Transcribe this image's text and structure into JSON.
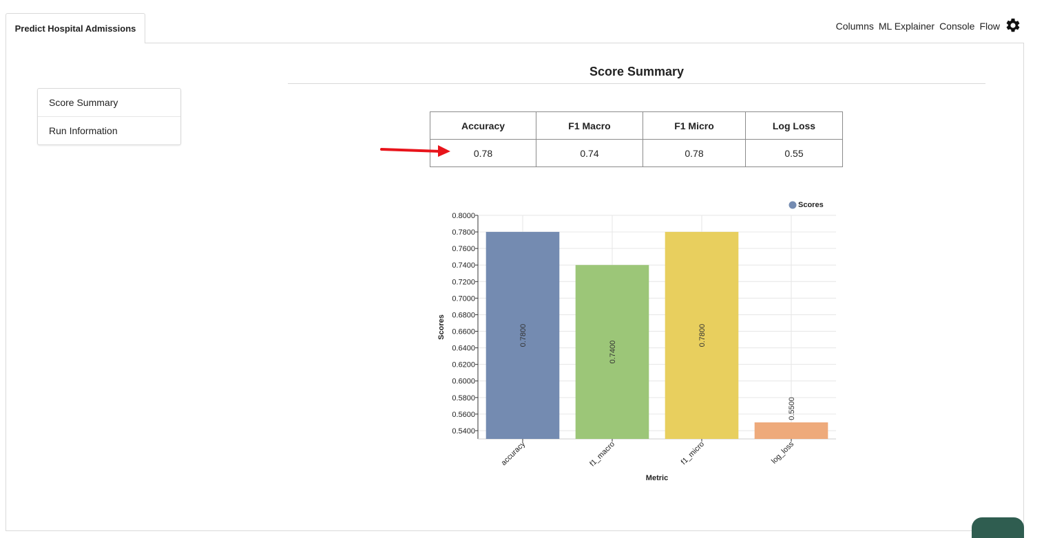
{
  "tab": {
    "label": "Predict Hospital Admissions"
  },
  "topnav": {
    "items": [
      "Columns",
      "ML Explainer",
      "Console",
      "Flow"
    ],
    "settings_icon": "gear-icon"
  },
  "sidenav": {
    "items": [
      "Score Summary",
      "Run Information"
    ]
  },
  "section": {
    "title": "Score Summary"
  },
  "scores_table": {
    "headers": [
      "Accuracy",
      "F1 Macro",
      "F1 Micro",
      "Log Loss"
    ],
    "values": [
      "0.78",
      "0.74",
      "0.78",
      "0.55"
    ]
  },
  "annotation": {
    "arrow_color": "#e8141b",
    "points_to": "Accuracy value"
  },
  "chart_data": {
    "type": "bar",
    "categories": [
      "accuracy",
      "f1_macro",
      "f1_micro",
      "log_loss"
    ],
    "values": [
      0.78,
      0.74,
      0.78,
      0.55
    ],
    "data_labels": [
      "0.7800",
      "0.7400",
      "0.7800",
      "0.5500"
    ],
    "colors": [
      "#748bb1",
      "#9cc678",
      "#e8cf5e",
      "#eeaa7b"
    ],
    "series": [
      {
        "name": "Scores",
        "values": [
          0.78,
          0.74,
          0.78,
          0.55
        ]
      }
    ],
    "legend": {
      "label": "Scores",
      "color": "#748bb1",
      "position": "top-right"
    },
    "xlabel": "Metric",
    "ylabel": "Scores",
    "ylim": [
      0.53,
      0.8
    ],
    "yticks": [
      "0.8000",
      "0.7800",
      "0.7600",
      "0.7400",
      "0.7200",
      "0.7000",
      "0.6800",
      "0.6600",
      "0.6400",
      "0.6200",
      "0.6000",
      "0.5800",
      "0.5600",
      "0.5400"
    ],
    "grid": true
  }
}
